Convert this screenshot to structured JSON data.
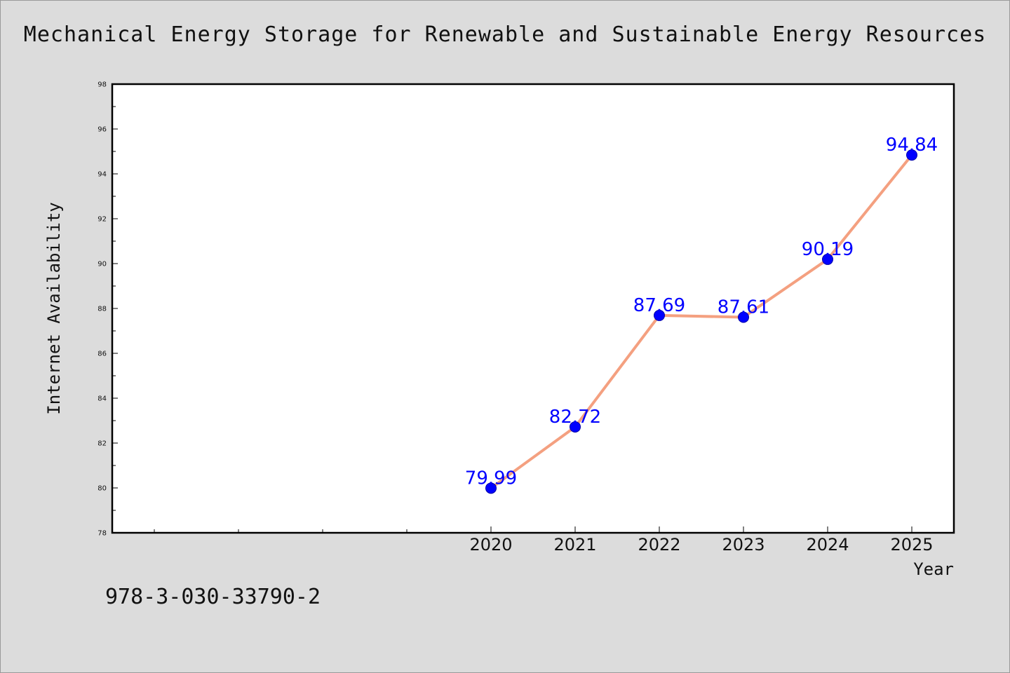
{
  "title": "Mechanical Energy Storage for Renewable and Sustainable Energy Resources",
  "isbn": "978-3-030-33790-2",
  "colors": {
    "background": "#dcdcdc",
    "plot_background": "#ffffff",
    "line": "#f4a080",
    "marker": "#0000ff",
    "data_label": "#0000ff"
  },
  "chart_data": {
    "type": "line",
    "title": "Mechanical Energy Storage for Renewable and Sustainable Energy Resources",
    "xlabel": "Year",
    "ylabel": "Internet Availability",
    "x": [
      2020,
      2021,
      2022,
      2023,
      2024,
      2025
    ],
    "x_tick_labels": [
      "2020",
      "2021",
      "2022",
      "2023",
      "2024",
      "2025"
    ],
    "xlim": [
      2015.5,
      2025.5
    ],
    "ylim": [
      78,
      98
    ],
    "y_ticks": [
      78,
      80,
      82,
      84,
      86,
      88,
      90,
      92,
      94,
      96,
      98
    ],
    "series": [
      {
        "values": [
          79.99,
          82.72,
          87.69,
          87.61,
          90.19,
          94.84
        ],
        "labels": [
          "79.99",
          "82.72",
          "87.69",
          "87.61",
          "90.19",
          "94.84"
        ]
      }
    ],
    "grid": false,
    "legend": "none"
  }
}
